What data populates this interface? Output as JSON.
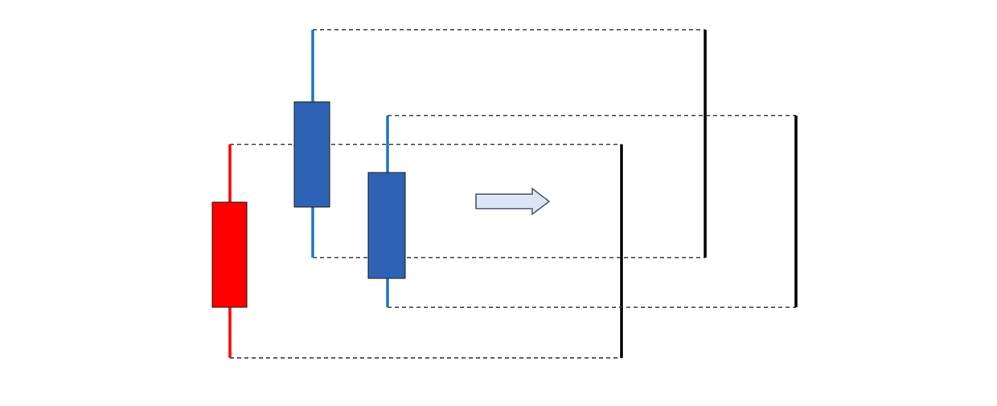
{
  "colors": {
    "background": "#ffffff",
    "bearish_wick": "#ff0000",
    "bearish_body": "#ff0000",
    "bullish_wick": "#1f77c8",
    "bullish_body": "#2e62b4",
    "body_border": "#1a1a1a",
    "range_line": "#000000",
    "dashed_line": "#333333",
    "arrow_fill": "#dae6f5",
    "arrow_stroke": "#4a5566"
  },
  "icons": {
    "arrow": "right-arrow-icon"
  },
  "candles": [
    {
      "name": "red-candle",
      "kind": "bearish"
    },
    {
      "name": "first-blue-candle",
      "kind": "bullish"
    },
    {
      "name": "second-blue-candle",
      "kind": "bullish"
    }
  ]
}
